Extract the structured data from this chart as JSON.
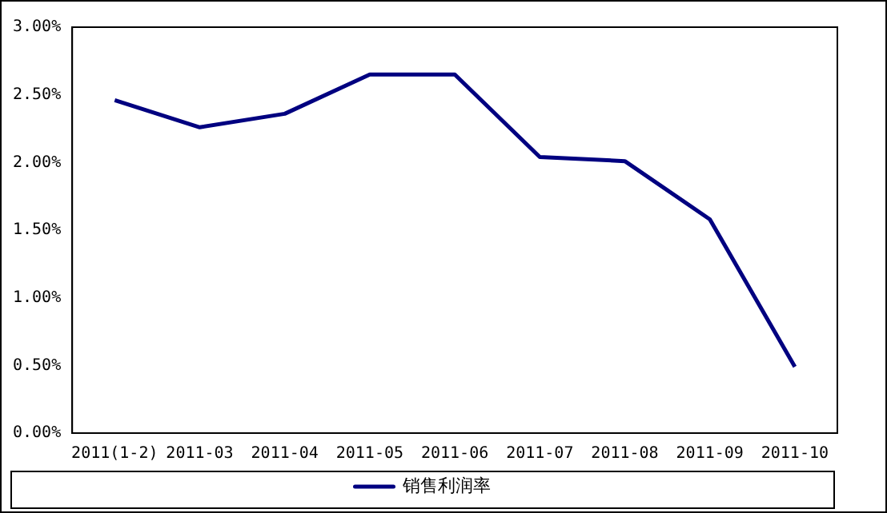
{
  "chart_data": {
    "type": "line",
    "categories": [
      "2011(1-2)",
      "2011-03",
      "2011-04",
      "2011-05",
      "2011-06",
      "2011-07",
      "2011-08",
      "2011-09",
      "2011-10"
    ],
    "series": [
      {
        "name": "销售利润率",
        "color": "#000080",
        "values": [
          2.46,
          2.26,
          2.36,
          2.65,
          2.65,
          2.04,
          2.01,
          1.58,
          0.49
        ]
      }
    ],
    "ylim": [
      0,
      3
    ],
    "yticks": [
      {
        "value": 0,
        "label": "0.00%"
      },
      {
        "value": 0.5,
        "label": "0.50%"
      },
      {
        "value": 1,
        "label": "1.00%"
      },
      {
        "value": 1.5,
        "label": "1.50%"
      },
      {
        "value": 2,
        "label": "2.00%"
      },
      {
        "value": 2.5,
        "label": "2.50%"
      },
      {
        "value": 3,
        "label": "3.00%"
      }
    ],
    "grid": false,
    "legend": "bottom",
    "marker": "none",
    "line_style": "solid"
  }
}
